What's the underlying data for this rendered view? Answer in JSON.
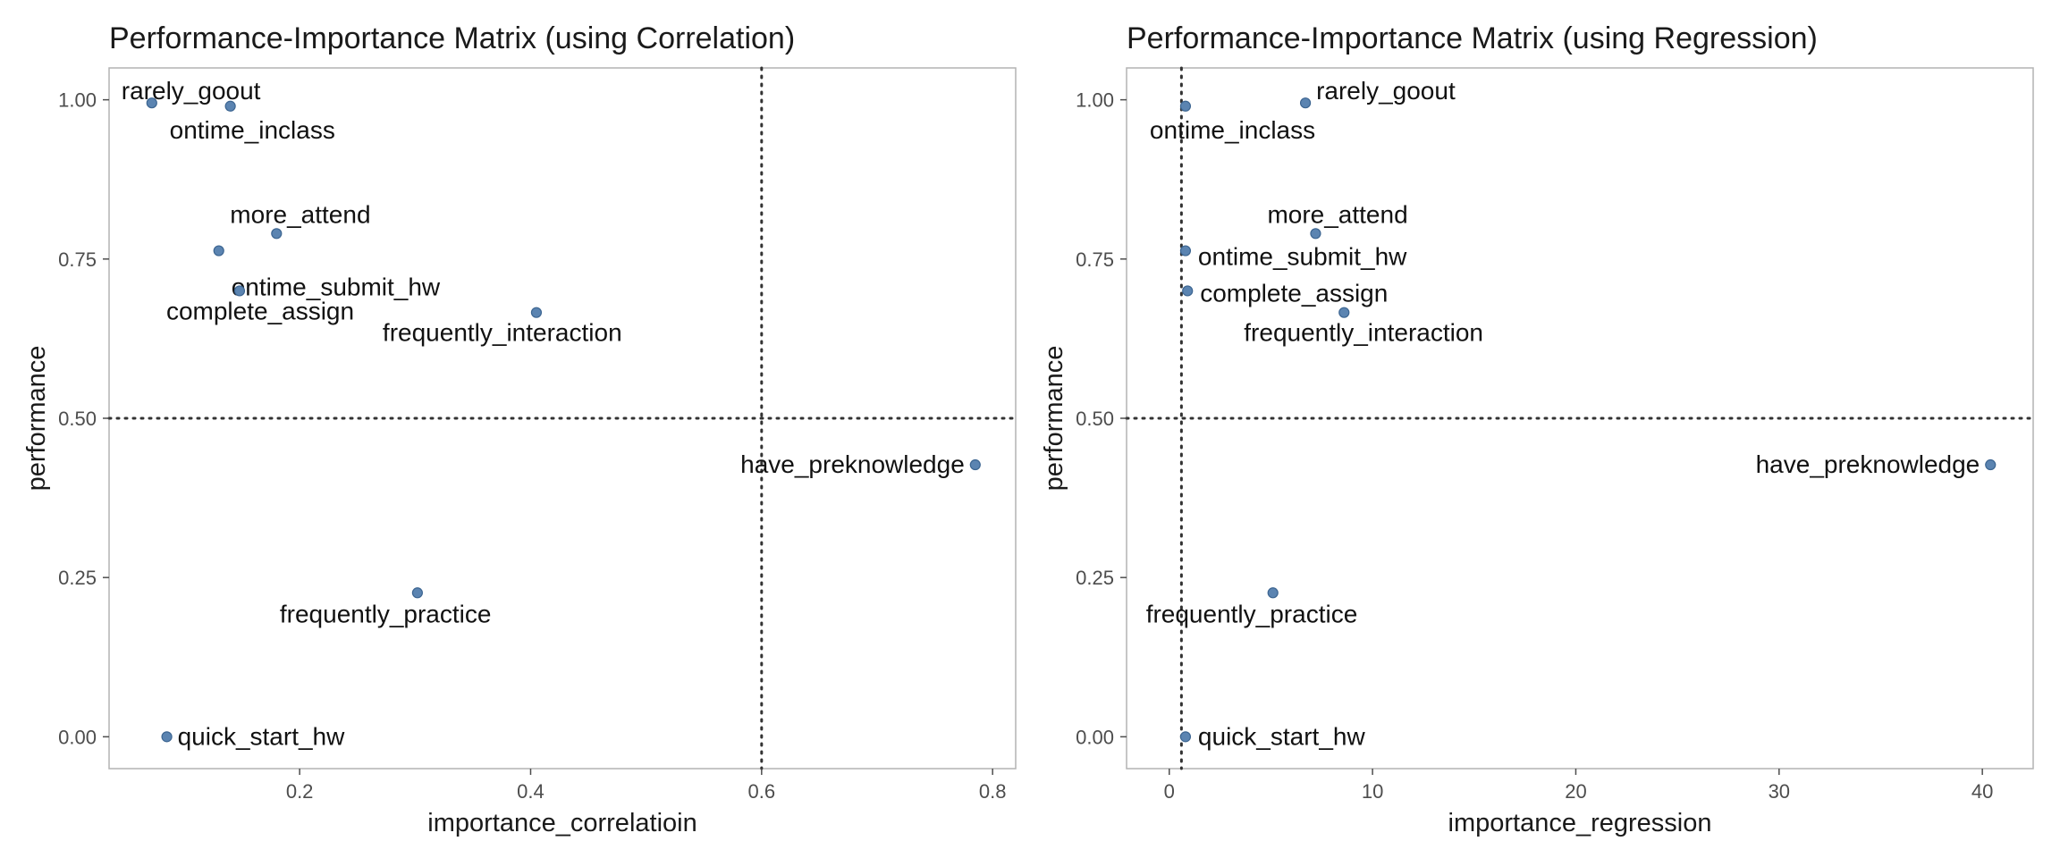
{
  "chart_data": [
    {
      "type": "scatter",
      "title": "Performance-Importance Matrix (using Correlation)",
      "xlabel": "importance_correlatioin",
      "ylabel": "performance",
      "xlim": [
        0.035,
        0.82
      ],
      "ylim": [
        -0.05,
        1.05
      ],
      "xticks": [
        0.2,
        0.4,
        0.6,
        0.8
      ],
      "xtick_labels": [
        "0.2",
        "0.4",
        "0.6",
        "0.8"
      ],
      "yticks": [
        0,
        0.25,
        0.5,
        0.75,
        1
      ],
      "ytick_labels": [
        "0.00",
        "0.25",
        "0.50",
        "0.75",
        "1.00"
      ],
      "vline": 0.6,
      "hline": 0.5,
      "grid": false,
      "point_color": "#5b84b1",
      "points": [
        {
          "label": "rarely_goout",
          "x": 0.072,
          "y": 0.995
        },
        {
          "label": "ontime_inclass",
          "x": 0.14,
          "y": 0.99
        },
        {
          "label": "more_attend",
          "x": 0.18,
          "y": 0.79
        },
        {
          "label": "ontime_submit_hw",
          "x": 0.13,
          "y": 0.763
        },
        {
          "label": "complete_assign",
          "x": 0.148,
          "y": 0.7
        },
        {
          "label": "frequently_interaction",
          "x": 0.405,
          "y": 0.666
        },
        {
          "label": "have_preknowledge",
          "x": 0.785,
          "y": 0.427
        },
        {
          "label": "frequently_practice",
          "x": 0.302,
          "y": 0.226
        },
        {
          "label": "quick_start_hw",
          "x": 0.085,
          "y": 0.0
        }
      ]
    },
    {
      "type": "scatter",
      "title": "Performance-Importance Matrix (using Regression)",
      "xlabel": "importance_regression",
      "ylabel": "performance",
      "xlim": [
        -2.1,
        42.5
      ],
      "ylim": [
        -0.05,
        1.05
      ],
      "xticks": [
        0,
        10,
        20,
        30,
        40
      ],
      "xtick_labels": [
        "0",
        "10",
        "20",
        "30",
        "40"
      ],
      "yticks": [
        0,
        0.25,
        0.5,
        0.75,
        1
      ],
      "ytick_labels": [
        "0.00",
        "0.25",
        "0.50",
        "0.75",
        "1.00"
      ],
      "vline": 0.6,
      "hline": 0.5,
      "grid": false,
      "point_color": "#5b84b1",
      "points": [
        {
          "label": "ontime_inclass",
          "x": 0.8,
          "y": 0.99
        },
        {
          "label": "rarely_goout",
          "x": 6.7,
          "y": 0.995
        },
        {
          "label": "more_attend",
          "x": 7.2,
          "y": 0.79
        },
        {
          "label": "ontime_submit_hw",
          "x": 0.8,
          "y": 0.763
        },
        {
          "label": "complete_assign",
          "x": 0.9,
          "y": 0.7
        },
        {
          "label": "frequently_interaction",
          "x": 8.6,
          "y": 0.666
        },
        {
          "label": "have_preknowledge",
          "x": 40.4,
          "y": 0.427
        },
        {
          "label": "frequently_practice",
          "x": 5.1,
          "y": 0.226
        },
        {
          "label": "quick_start_hw",
          "x": 0.8,
          "y": 0.0
        }
      ]
    }
  ]
}
